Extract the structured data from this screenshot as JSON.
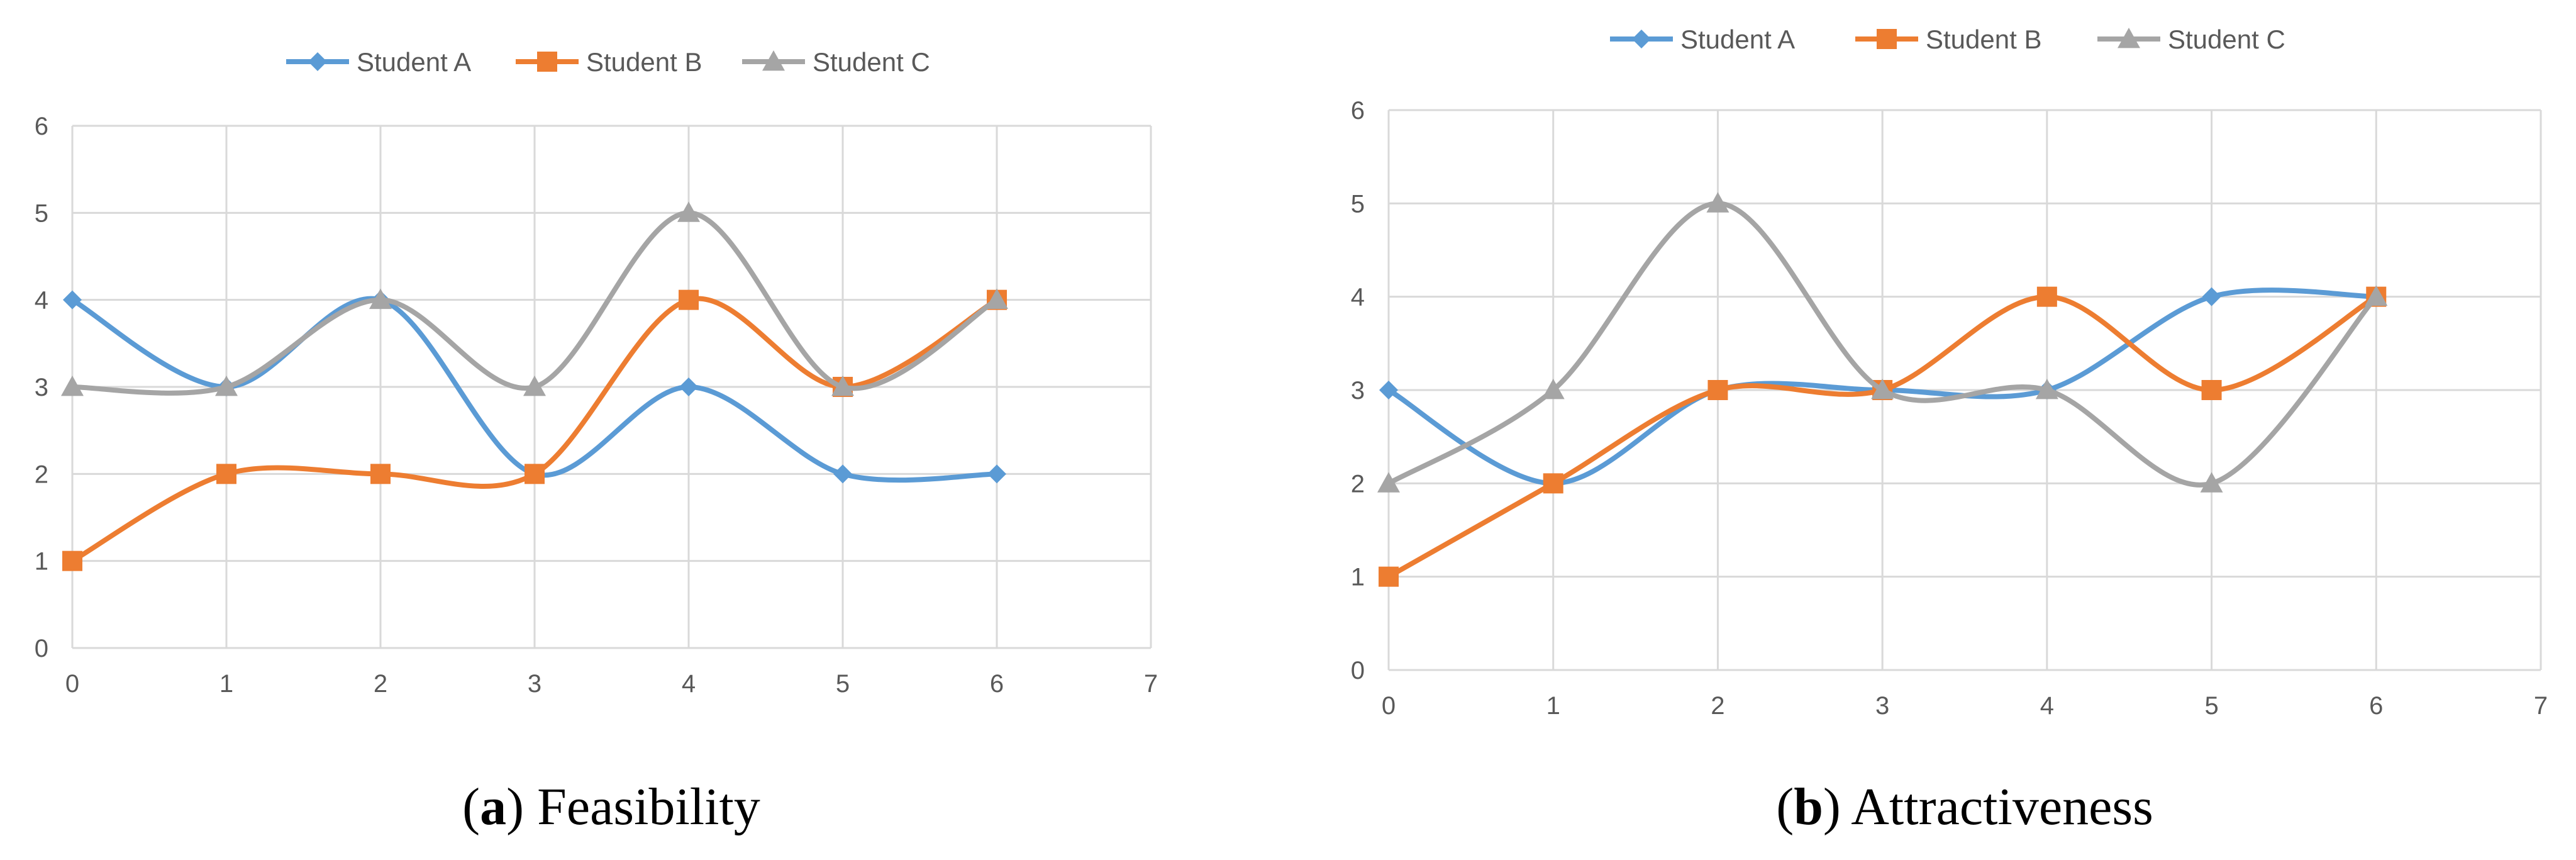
{
  "chart_data": [
    {
      "type": "line",
      "caption_letter": "a",
      "caption_text": "Feasibility",
      "x": [
        0,
        1,
        2,
        3,
        4,
        5,
        6
      ],
      "xlim": [
        0,
        7
      ],
      "ylim": [
        0,
        6
      ],
      "xticks": [
        "0",
        "1",
        "2",
        "3",
        "4",
        "5",
        "6",
        "7"
      ],
      "yticks": [
        "0",
        "1",
        "2",
        "3",
        "4",
        "5",
        "6"
      ],
      "grid": true,
      "legend_position": "top",
      "smooth": true,
      "series": [
        {
          "name": "Student A",
          "values": [
            4,
            3,
            4,
            2,
            3,
            2,
            2
          ],
          "marker": "diamond",
          "color": "#5B9BD5"
        },
        {
          "name": "Student B",
          "values": [
            1,
            2,
            2,
            2,
            4,
            3,
            4
          ],
          "marker": "square",
          "color": "#ED7D31"
        },
        {
          "name": "Student C",
          "values": [
            3,
            3,
            4,
            3,
            5,
            3,
            4
          ],
          "marker": "triangle",
          "color": "#A5A5A5"
        }
      ]
    },
    {
      "type": "line",
      "caption_letter": "b",
      "caption_text": "Attractiveness",
      "x": [
        0,
        1,
        2,
        3,
        4,
        5,
        6
      ],
      "xlim": [
        0,
        7
      ],
      "ylim": [
        0,
        6
      ],
      "xticks": [
        "0",
        "1",
        "2",
        "3",
        "4",
        "5",
        "6",
        "7"
      ],
      "yticks": [
        "0",
        "1",
        "2",
        "3",
        "4",
        "5",
        "6"
      ],
      "grid": true,
      "legend_position": "top",
      "smooth": true,
      "series": [
        {
          "name": "Student A",
          "values": [
            3,
            2,
            3,
            3,
            3,
            4,
            4
          ],
          "marker": "diamond",
          "color": "#5B9BD5"
        },
        {
          "name": "Student B",
          "values": [
            1,
            2,
            3,
            3,
            4,
            3,
            4
          ],
          "marker": "square",
          "color": "#ED7D31"
        },
        {
          "name": "Student C",
          "values": [
            2,
            3,
            5,
            3,
            3,
            2,
            4
          ],
          "marker": "triangle",
          "color": "#A5A5A5"
        }
      ]
    }
  ]
}
